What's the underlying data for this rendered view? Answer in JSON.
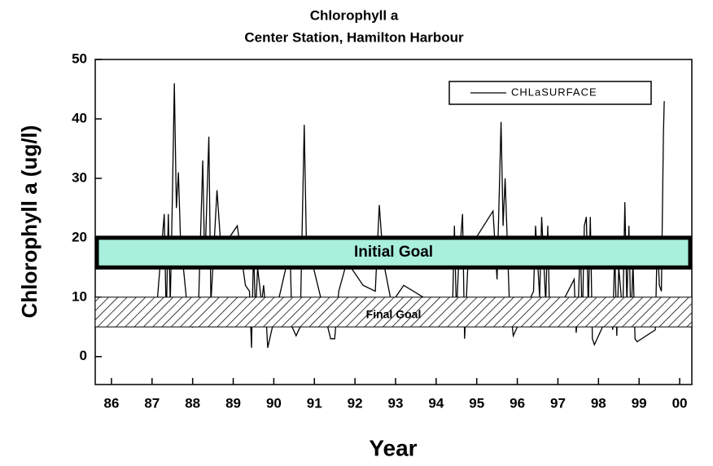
{
  "chart_data": {
    "type": "line",
    "title": "Chlorophyll a",
    "subtitle": "Center Station, Hamilton Harbour",
    "xlabel": "Year",
    "ylabel": "Chlorophyll a (ug/l)",
    "xlim": [
      85.6,
      100.3
    ],
    "ylim": [
      -4.7,
      50
    ],
    "xticks": [
      86,
      87,
      88,
      89,
      90,
      91,
      92,
      93,
      94,
      95,
      96,
      97,
      98,
      99,
      {
        "value": 100,
        "label": "00"
      }
    ],
    "yticks": [
      0,
      10,
      20,
      30,
      40,
      50
    ],
    "legend": "top-right",
    "x": [
      87.1,
      87.3,
      87.35,
      87.4,
      87.45,
      87.5,
      87.55,
      87.6,
      87.65,
      87.7,
      87.9,
      88.0,
      88.15,
      88.25,
      88.3,
      88.4,
      88.45,
      88.6,
      88.7,
      89.1,
      89.3,
      89.4,
      89.45,
      89.5,
      89.55,
      89.6,
      89.7,
      89.75,
      89.8,
      89.85,
      90.4,
      90.45,
      90.55,
      90.65,
      90.75,
      90.8,
      91.4,
      91.5,
      91.6,
      91.8,
      92.2,
      92.5,
      92.6,
      92.7,
      92.9,
      93.2,
      94.4,
      94.45,
      94.5,
      94.55,
      94.65,
      94.7,
      94.8,
      95.4,
      95.5,
      95.6,
      95.65,
      95.7,
      95.8,
      95.9,
      96.4,
      96.45,
      96.55,
      96.6,
      96.7,
      96.75,
      96.8,
      97.4,
      97.45,
      97.5,
      97.55,
      97.6,
      97.65,
      97.7,
      97.75,
      97.8,
      97.85,
      97.9,
      98.3,
      98.35,
      98.4,
      98.45,
      98.5,
      98.6,
      98.65,
      98.7,
      98.75,
      98.8,
      98.85,
      98.9,
      98.95,
      99.4,
      99.45,
      99.5,
      99.55,
      99.6,
      99.62
    ],
    "series": [
      {
        "name": "CHLaSURFACE",
        "color": "#000000",
        "values": [
          7,
          24,
          6,
          24,
          9,
          26,
          46,
          25,
          31,
          20,
          6,
          5,
          10,
          33,
          15,
          37,
          9,
          28,
          18,
          22,
          12,
          11,
          1.5,
          18,
          7,
          15,
          9,
          12,
          8,
          1.5,
          18,
          5,
          3.5,
          5,
          39,
          20,
          3,
          3,
          11,
          16,
          12,
          11,
          25.5,
          16,
          9,
          12,
          7,
          22,
          7,
          15,
          24,
          3,
          18,
          24.5,
          13,
          39.5,
          22,
          30,
          10,
          3.5,
          11,
          22,
          10,
          23.5,
          9,
          22,
          5,
          13,
          4,
          8,
          20,
          5,
          22,
          23.5,
          8,
          23.5,
          3,
          2,
          8,
          4.5,
          18,
          3.5,
          15,
          7,
          26,
          9,
          22,
          5,
          16,
          3,
          2.5,
          4.5,
          20,
          12,
          11,
          37.5,
          43
        ]
      }
    ],
    "bands": [
      {
        "label": "Initial Goal",
        "range": [
          15,
          20
        ],
        "color": "#a8efdc"
      },
      {
        "label": "Final Goal",
        "range": [
          5,
          10
        ],
        "color": "hatch"
      }
    ]
  }
}
